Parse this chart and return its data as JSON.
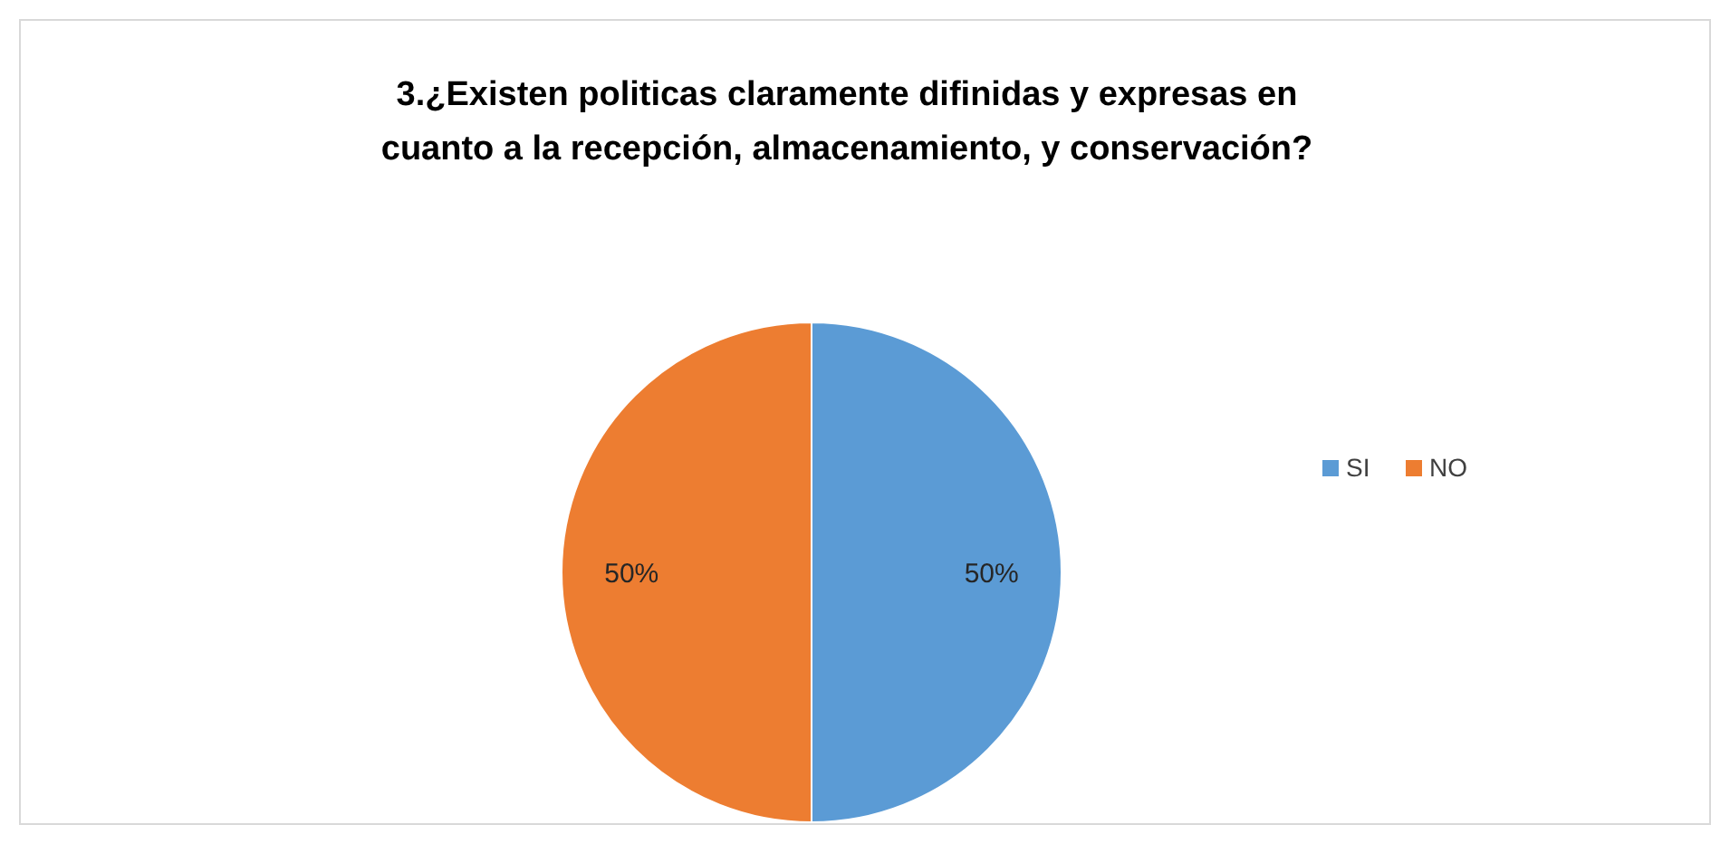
{
  "chart_data": {
    "type": "pie",
    "title": "3.¿Existen politicas claramente difinidas y expresas en cuanto a la recepción, almacenamiento, y conservación?",
    "categories": [
      "SI",
      "NO"
    ],
    "values": [
      50,
      50
    ],
    "colors": [
      "#5b9bd5",
      "#ed7d31"
    ],
    "value_labels": [
      "50%",
      "50%"
    ],
    "legend": "right"
  }
}
